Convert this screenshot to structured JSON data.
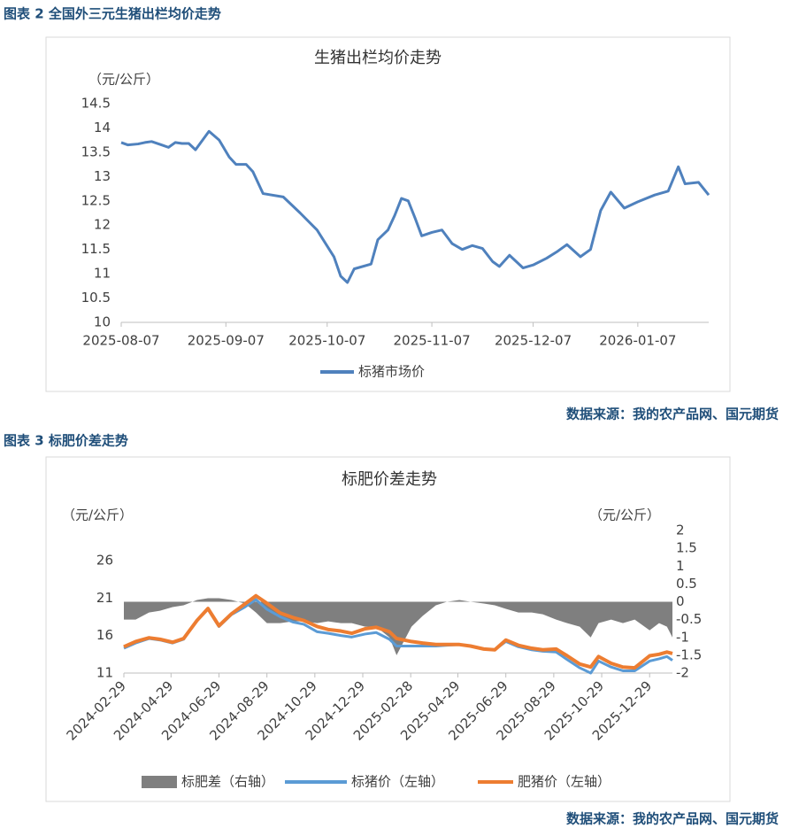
{
  "captions": [
    "图表 2  全国外三元生猪出栏均价走势",
    "图表 3  标肥价差走势"
  ],
  "sources": [
    "数据来源：我的农产品网、国元期货",
    "数据来源：我的农产品网、国元期货"
  ],
  "chart_data": [
    {
      "type": "line",
      "title": "生猪出栏均价走势",
      "y_unit": "（元/公斤）",
      "x": [
        "2025-08-07",
        "2025-08-09",
        "2025-08-12",
        "2025-08-14",
        "2025-08-16",
        "2025-08-19",
        "2025-08-21",
        "2025-08-23",
        "2025-08-25",
        "2025-08-27",
        "2025-08-29",
        "2025-09-02",
        "2025-09-05",
        "2025-09-08",
        "2025-09-10",
        "2025-09-13",
        "2025-09-15",
        "2025-09-18",
        "2025-09-24",
        "2025-09-29",
        "2025-10-04",
        "2025-10-09",
        "2025-10-11",
        "2025-10-13",
        "2025-10-15",
        "2025-10-20",
        "2025-10-22",
        "2025-10-25",
        "2025-10-27",
        "2025-10-29",
        "2025-10-31",
        "2025-11-02",
        "2025-11-04",
        "2025-11-07",
        "2025-11-10",
        "2025-11-13",
        "2025-11-16",
        "2025-11-19",
        "2025-11-22",
        "2025-11-25",
        "2025-11-27",
        "2025-11-30",
        "2025-12-04",
        "2025-12-07",
        "2025-12-11",
        "2025-12-14",
        "2025-12-17",
        "2025-12-21",
        "2025-12-24",
        "2025-12-27",
        "2025-12-30",
        "2026-01-03",
        "2026-01-07",
        "2026-01-12",
        "2026-01-16",
        "2026-01-19",
        "2026-01-21",
        "2026-01-25",
        "2026-01-28"
      ],
      "series": [
        {
          "name": "标猪市场价",
          "color": "#4f81bd",
          "values": [
            13.7,
            13.65,
            13.67,
            13.7,
            13.72,
            13.65,
            13.6,
            13.7,
            13.68,
            13.68,
            13.55,
            13.93,
            13.75,
            13.4,
            13.25,
            13.25,
            13.1,
            12.65,
            12.58,
            12.25,
            11.9,
            11.35,
            10.95,
            10.82,
            11.1,
            11.2,
            11.7,
            11.9,
            12.2,
            12.55,
            12.5,
            12.15,
            11.78,
            11.85,
            11.9,
            11.62,
            11.5,
            11.58,
            11.52,
            11.25,
            11.15,
            11.38,
            11.12,
            11.18,
            11.32,
            11.45,
            11.6,
            11.35,
            11.5,
            12.3,
            12.68,
            12.35,
            12.48,
            12.62,
            12.7,
            13.2,
            12.85,
            12.88,
            12.62
          ]
        }
      ],
      "xlim": [
        "2025-08-07",
        "2026-01-28"
      ],
      "xticks": [
        "2025-08-07",
        "2025-09-07",
        "2025-10-07",
        "2025-11-07",
        "2025-12-07",
        "2026-01-07"
      ],
      "ylim": [
        10,
        14.5
      ],
      "yticks": [
        10,
        10.5,
        11,
        11.5,
        12,
        12.5,
        13,
        13.5,
        14,
        14.5
      ]
    },
    {
      "type": "combo",
      "title": "标肥价差走势",
      "y_unit": "（元/公斤）",
      "y2_unit": "（元/公斤）",
      "x": [
        "2024-02-29",
        "2024-03-15",
        "2024-04-01",
        "2024-04-15",
        "2024-05-01",
        "2024-05-15",
        "2024-06-01",
        "2024-06-15",
        "2024-06-29",
        "2024-07-15",
        "2024-08-01",
        "2024-08-15",
        "2024-08-29",
        "2024-09-15",
        "2024-10-01",
        "2024-10-15",
        "2024-11-01",
        "2024-11-15",
        "2024-12-01",
        "2024-12-15",
        "2025-01-01",
        "2025-01-15",
        "2025-02-01",
        "2025-02-10",
        "2025-03-01",
        "2025-03-15",
        "2025-04-01",
        "2025-04-15",
        "2025-05-01",
        "2025-05-15",
        "2025-06-01",
        "2025-06-15",
        "2025-06-29",
        "2025-07-15",
        "2025-08-01",
        "2025-08-15",
        "2025-09-01",
        "2025-09-15",
        "2025-10-01",
        "2025-10-15",
        "2025-10-25",
        "2025-11-10",
        "2025-11-25",
        "2025-12-10",
        "2025-12-29",
        "2026-01-10",
        "2026-01-20",
        "2026-01-27"
      ],
      "series": [
        {
          "name": "标肥差（右轴）",
          "type": "area",
          "axis": "y2",
          "color": "#7f7f7f",
          "values": [
            -0.5,
            -0.5,
            -0.3,
            -0.25,
            -0.15,
            -0.1,
            0.05,
            0.1,
            0.1,
            0.05,
            -0.05,
            -0.3,
            -0.6,
            -0.6,
            -0.55,
            -0.55,
            -0.6,
            -0.55,
            -0.6,
            -0.6,
            -0.7,
            -0.7,
            -1.0,
            -1.5,
            -0.7,
            -0.4,
            -0.1,
            0,
            0.05,
            0,
            -0.05,
            -0.1,
            -0.2,
            -0.3,
            -0.3,
            -0.35,
            -0.5,
            -0.6,
            -0.7,
            -1.0,
            -0.6,
            -0.5,
            -0.6,
            -0.5,
            -0.8,
            -0.6,
            -0.7,
            -1.0
          ]
        },
        {
          "name": "标猪价（左轴）",
          "type": "line",
          "color": "#5b9bd5",
          "values": [
            14.3,
            15.0,
            15.6,
            15.4,
            15.0,
            15.5,
            18.0,
            19.5,
            17.2,
            18.8,
            19.8,
            20.8,
            19.5,
            18.5,
            17.8,
            17.5,
            16.5,
            16.3,
            16.0,
            15.8,
            16.2,
            16.4,
            15.5,
            14.6,
            14.6,
            14.6,
            14.6,
            14.7,
            14.8,
            14.6,
            14.2,
            14.1,
            15.2,
            14.5,
            14.1,
            13.9,
            13.8,
            12.8,
            11.7,
            11.0,
            12.6,
            11.8,
            11.3,
            11.3,
            12.6,
            12.9,
            13.2,
            12.7
          ]
        },
        {
          "name": "肥猪价（左轴）",
          "type": "line",
          "color": "#ed7d31",
          "values": [
            14.5,
            15.2,
            15.7,
            15.5,
            15.1,
            15.6,
            18.0,
            19.6,
            17.3,
            18.9,
            20.2,
            21.3,
            20.3,
            19.0,
            18.4,
            18.0,
            17.2,
            16.8,
            16.6,
            16.3,
            16.9,
            17.1,
            16.5,
            15.6,
            15.2,
            15.0,
            14.8,
            14.8,
            14.8,
            14.6,
            14.2,
            14.1,
            15.4,
            14.7,
            14.3,
            14.1,
            14.2,
            13.3,
            12.2,
            11.8,
            13.2,
            12.3,
            11.8,
            11.7,
            13.3,
            13.5,
            13.8,
            13.6
          ]
        }
      ],
      "xlim": [
        "2024-02-29",
        "2026-01-27"
      ],
      "xticks": [
        "2024-02-29",
        "2024-04-29",
        "2024-06-29",
        "2024-08-29",
        "2024-10-29",
        "2024-12-29",
        "2025-02-28",
        "2025-04-29",
        "2025-06-29",
        "2025-08-29",
        "2025-10-29",
        "2025-12-29"
      ],
      "ylim": [
        11,
        30
      ],
      "yticks": [
        11,
        16,
        21,
        26
      ],
      "y2lim": [
        -2,
        2
      ],
      "y2ticks": [
        -2,
        -1.5,
        -1,
        -0.5,
        0,
        0.5,
        1,
        1.5,
        2
      ]
    }
  ]
}
